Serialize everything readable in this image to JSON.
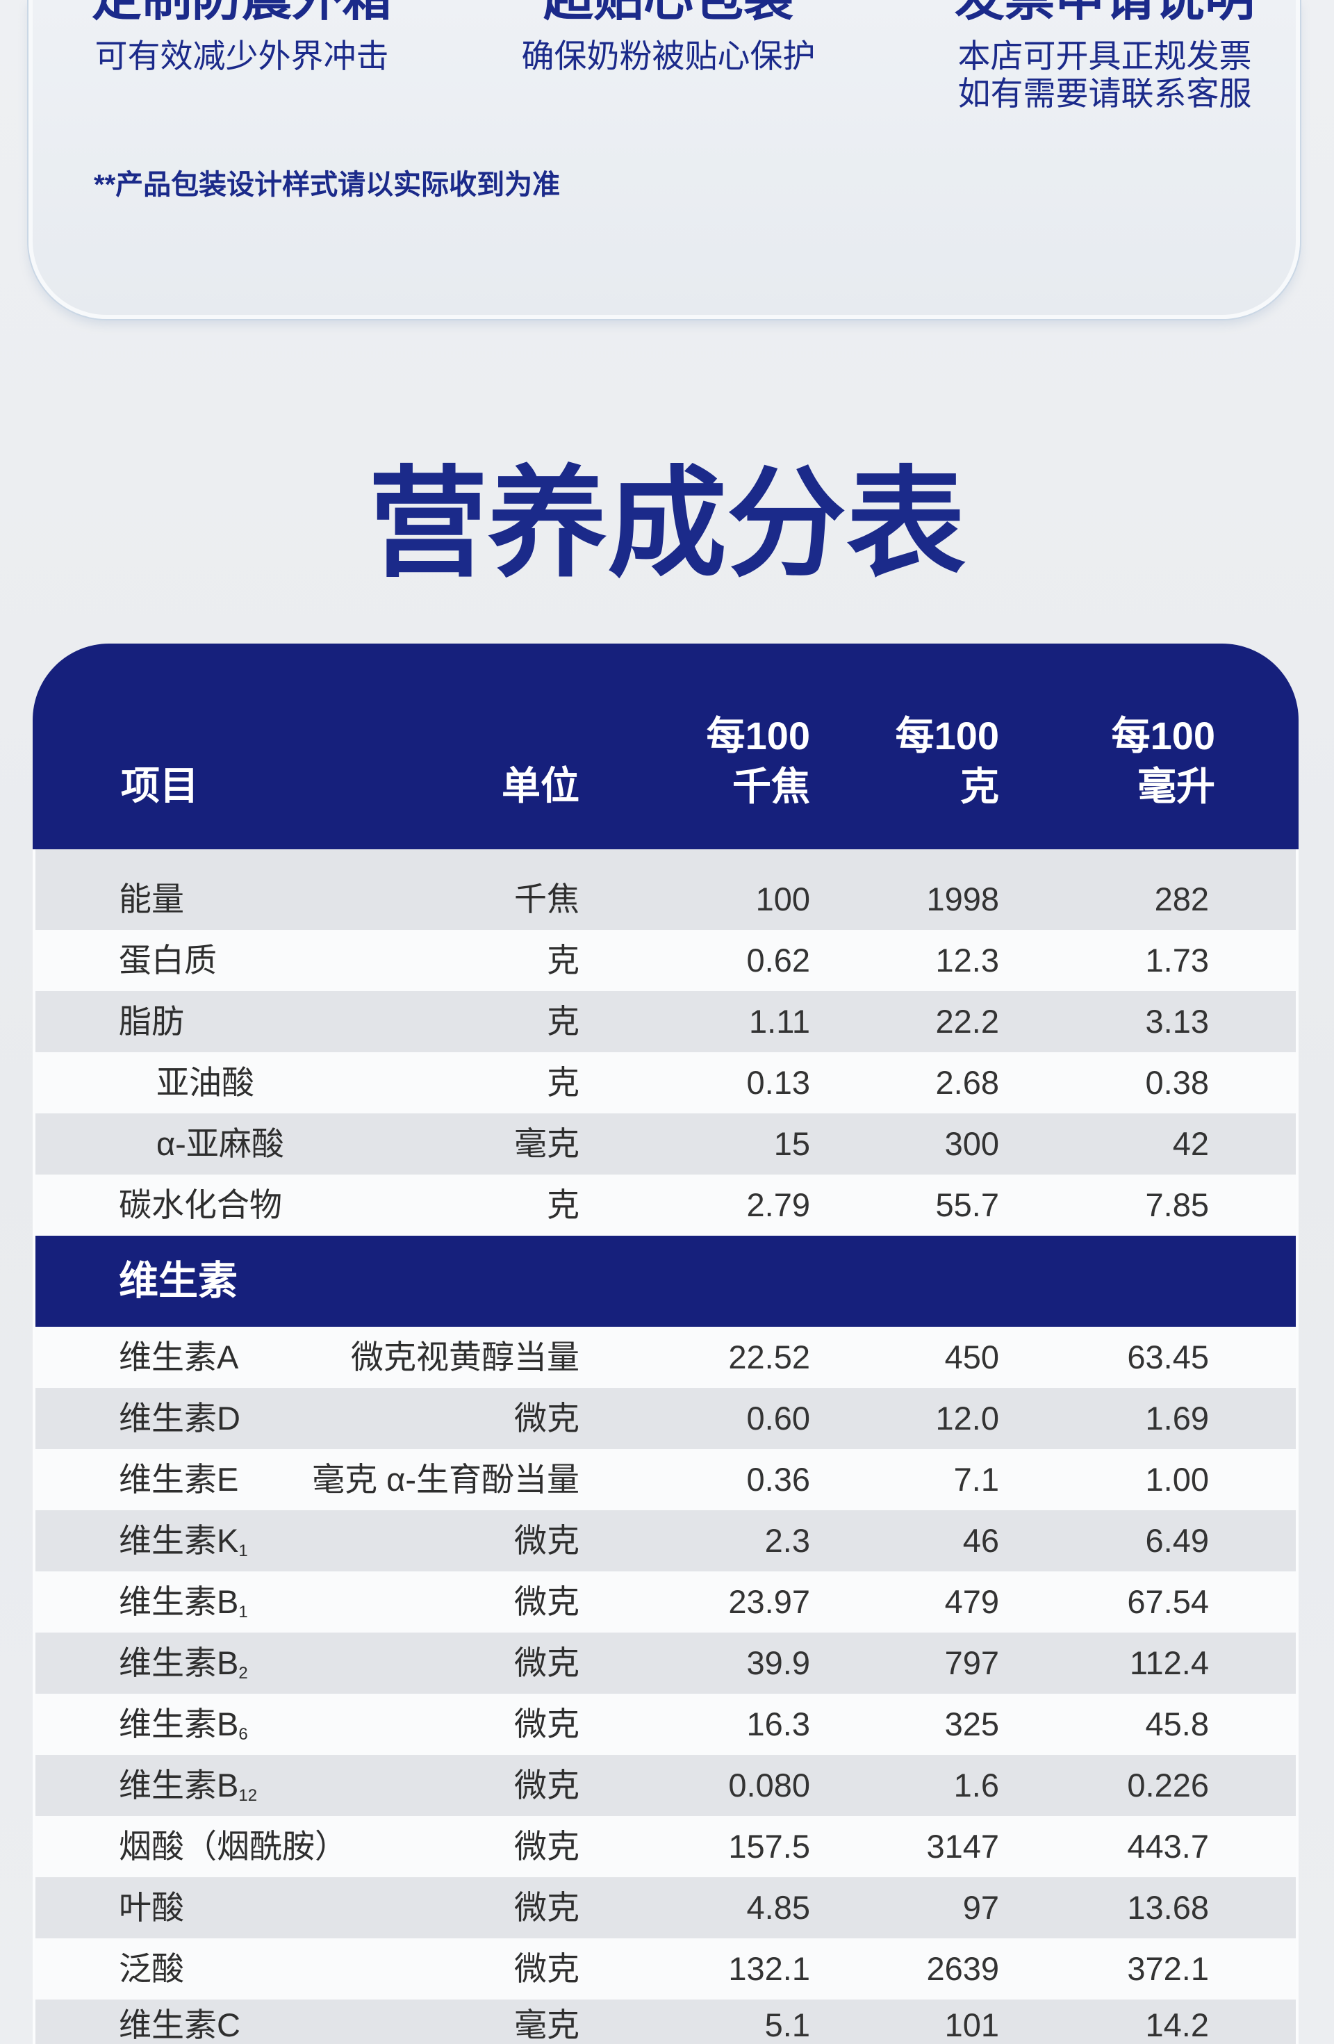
{
  "colors": {
    "navy": "#16207c",
    "title": "#1b2a8a",
    "row_alt": "#e2e4e8",
    "row": "#fafbfc",
    "text": "#2e2e2e"
  },
  "features": [
    {
      "title": "定制防震外箱",
      "lines": [
        "可有效减少外界冲击"
      ]
    },
    {
      "title": "超贴心包装",
      "lines": [
        "确保奶粉被贴心保护"
      ]
    },
    {
      "title": "发票申请说明",
      "lines": [
        "本店可开具正规发票",
        "如有需要请联系客服"
      ]
    }
  ],
  "packaging_note": "**产品包装设计样式请以实际收到为准",
  "section_title": "营养成分表",
  "table": {
    "columns": {
      "item": "项目",
      "unit": "单位",
      "per_100kj": {
        "line1": "每100",
        "line2": "千焦"
      },
      "per_100g": {
        "line1": "每100",
        "line2": "克"
      },
      "per_100ml": {
        "line1": "每100",
        "line2": "毫升"
      }
    },
    "rows": [
      {
        "name": "能量",
        "unit": "千焦",
        "per_100kj": "100",
        "per_100g": "1998",
        "per_100ml": "282"
      },
      {
        "name": "蛋白质",
        "unit": "克",
        "per_100kj": "0.62",
        "per_100g": "12.3",
        "per_100ml": "1.73"
      },
      {
        "name": "脂肪",
        "unit": "克",
        "per_100kj": "1.11",
        "per_100g": "22.2",
        "per_100ml": "3.13",
        "children": [
          {
            "name": "亚油酸",
            "unit": "克",
            "per_100kj": "0.13",
            "per_100g": "2.68",
            "per_100ml": "0.38"
          },
          {
            "name": "α-亚麻酸",
            "unit": "毫克",
            "per_100kj": "15",
            "per_100g": "300",
            "per_100ml": "42"
          }
        ]
      },
      {
        "name": "碳水化合物",
        "unit": "克",
        "per_100kj": "2.79",
        "per_100g": "55.7",
        "per_100ml": "7.85"
      }
    ],
    "vitamins": {
      "label": "维生素",
      "rows": [
        {
          "name": "维生素A",
          "unit": "微克视黄醇当量",
          "per_100kj": "22.52",
          "per_100g": "450",
          "per_100ml": "63.45"
        },
        {
          "name": "维生素D",
          "unit": "微克",
          "per_100kj": "0.60",
          "per_100g": "12.0",
          "per_100ml": "1.69"
        },
        {
          "name": "维生素E",
          "unit": "毫克 α-生育酚当量",
          "per_100kj": "0.36",
          "per_100g": "7.1",
          "per_100ml": "1.00"
        },
        {
          "name": "维生素K",
          "sub": "1",
          "unit": "微克",
          "per_100kj": "2.3",
          "per_100g": "46",
          "per_100ml": "6.49"
        },
        {
          "name": "维生素B",
          "sub": "1",
          "unit": "微克",
          "per_100kj": "23.97",
          "per_100g": "479",
          "per_100ml": "67.54"
        },
        {
          "name": "维生素B",
          "sub": "2",
          "unit": "微克",
          "per_100kj": "39.9",
          "per_100g": "797",
          "per_100ml": "112.4"
        },
        {
          "name": "维生素B",
          "sub": "6",
          "unit": "微克",
          "per_100kj": "16.3",
          "per_100g": "325",
          "per_100ml": "45.8"
        },
        {
          "name": "维生素B",
          "sub": "12",
          "unit": "微克",
          "per_100kj": "0.080",
          "per_100g": "1.6",
          "per_100ml": "0.226"
        },
        {
          "name": "烟酸（烟酰胺）",
          "unit": "微克",
          "per_100kj": "157.5",
          "per_100g": "3147",
          "per_100ml": "443.7"
        },
        {
          "name": "叶酸",
          "unit": "微克",
          "per_100kj": "4.85",
          "per_100g": "97",
          "per_100ml": "13.68"
        },
        {
          "name": "泛酸",
          "unit": "微克",
          "per_100kj": "132.1",
          "per_100g": "2639",
          "per_100ml": "372.1"
        },
        {
          "name": "维生素C",
          "unit": "毫克",
          "per_100kj": "5.1",
          "per_100g": "101",
          "per_100ml": "14.2"
        }
      ]
    }
  }
}
